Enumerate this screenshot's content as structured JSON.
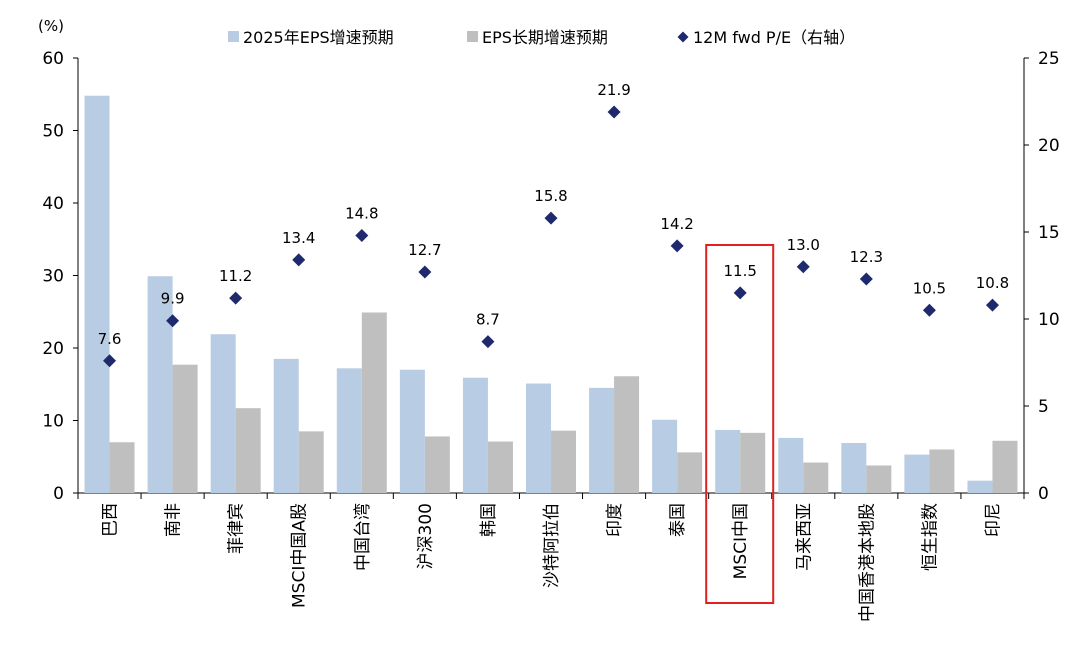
{
  "chart_data": {
    "type": "bar",
    "title": "",
    "y_unit_label": "(%)",
    "ylim": [
      0,
      60
    ],
    "yticks": [
      0,
      10,
      20,
      30,
      40,
      50,
      60
    ],
    "y2lim": [
      0,
      25
    ],
    "y2ticks": [
      0,
      5,
      10,
      15,
      20,
      25
    ],
    "legend_position": "top",
    "categories": [
      "巴西",
      "南非",
      "菲律宾",
      "MSCI中国A股",
      "中国台湾",
      "沪深300",
      "韩国",
      "沙特阿拉伯",
      "印度",
      "泰国",
      "MSCI中国",
      "马来西亚",
      "中国香港本地股",
      "恒生指数",
      "印尼"
    ],
    "highlight_category": "MSCI中国",
    "series": [
      {
        "name": "2025年EPS增速预期",
        "kind": "bar",
        "axis": "left",
        "color": "#b8cce4",
        "values": [
          54.8,
          29.9,
          21.9,
          18.5,
          17.2,
          17.0,
          15.9,
          15.1,
          14.5,
          10.1,
          8.7,
          7.6,
          6.9,
          5.3,
          1.7
        ]
      },
      {
        "name": "EPS长期增速预期",
        "kind": "bar",
        "axis": "left",
        "color": "#bfbfbf",
        "values": [
          7.0,
          17.7,
          11.7,
          8.5,
          24.9,
          7.8,
          7.1,
          8.6,
          16.1,
          5.6,
          8.3,
          4.2,
          3.8,
          6.0,
          7.2
        ]
      },
      {
        "name": "12M fwd P/E（右轴）",
        "kind": "scatter",
        "axis": "right",
        "color": "#1f2a6e",
        "values": [
          7.6,
          9.9,
          11.2,
          13.4,
          14.8,
          12.7,
          8.7,
          15.8,
          21.9,
          14.2,
          11.5,
          13.0,
          12.3,
          10.5,
          10.8
        ],
        "labels": [
          "7.6",
          "9.9",
          "11.2",
          "13.4",
          "14.8",
          "12.7",
          "8.7",
          "15.8",
          "21.9",
          "14.2",
          "11.5",
          "13.0",
          "12.3",
          "10.5",
          "10.8"
        ]
      }
    ]
  }
}
